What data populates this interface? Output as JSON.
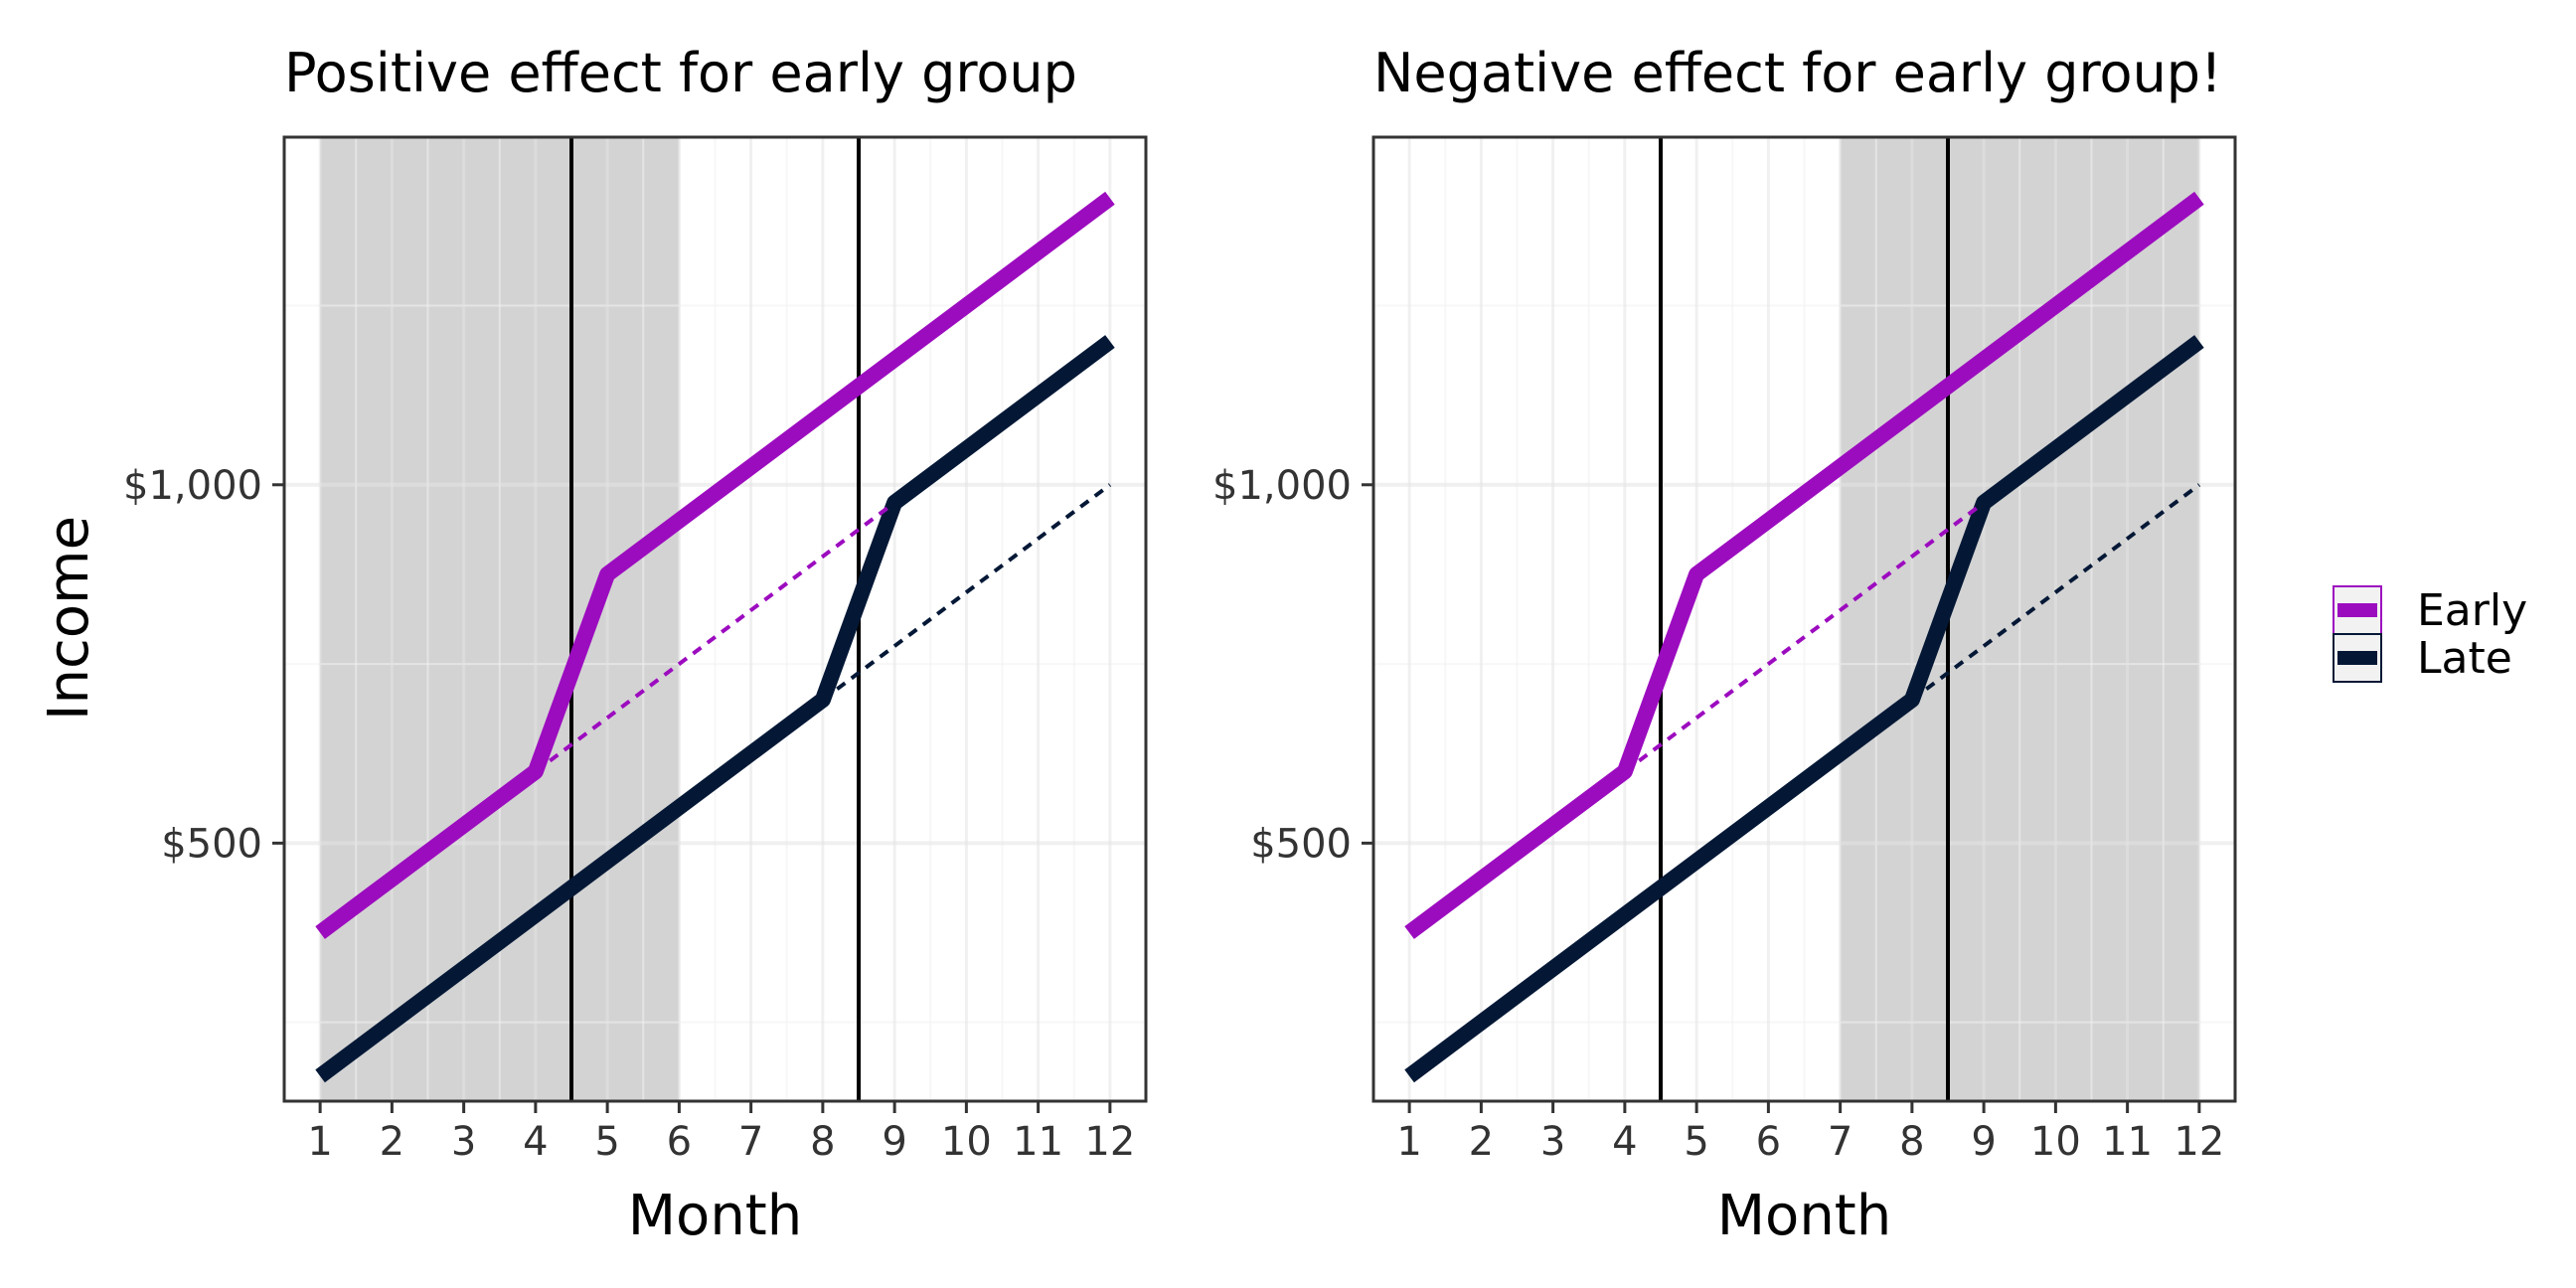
{
  "colors": {
    "early": "#9C0CBF",
    "late": "#041836",
    "shade": "#D3D3D3",
    "grid_major": "#E5E5E5",
    "grid_minor": "#F2F2F2",
    "frame": "#333333",
    "vline": "#000000"
  },
  "legend": {
    "position": "right",
    "entries": [
      {
        "name": "Early",
        "series": "early"
      },
      {
        "name": "Late",
        "series": "late"
      }
    ]
  },
  "chart_data": [
    {
      "type": "line",
      "title": "Positive effect for early group",
      "xlabel": "Month",
      "ylabel": "Income",
      "xlim": [
        0.5,
        12.5
      ],
      "ylim": [
        140,
        1485
      ],
      "x_ticks": [
        1,
        2,
        3,
        4,
        5,
        6,
        7,
        8,
        9,
        10,
        11,
        12
      ],
      "x_tick_labels": [
        "1",
        "2",
        "3",
        "4",
        "5",
        "6",
        "7",
        "8",
        "9",
        "10",
        "11",
        "12"
      ],
      "y_ticks": [
        500,
        1000
      ],
      "y_tick_labels": [
        "$500",
        "$1,000"
      ],
      "y_minor_ticks": [
        250,
        750,
        1250
      ],
      "grid": true,
      "shaded_region": [
        1,
        6
      ],
      "vlines": [
        4.5,
        8.5
      ],
      "series": [
        {
          "name": "Early",
          "key": "early",
          "style": "solid",
          "x": [
            1,
            4,
            5,
            12
          ],
          "y": [
            375,
            600,
            875,
            1400
          ]
        },
        {
          "name": "Late",
          "key": "late",
          "style": "solid",
          "x": [
            1,
            8,
            9,
            12
          ],
          "y": [
            175,
            700,
            975,
            1200
          ]
        },
        {
          "key": "early",
          "style": "dashed",
          "x": [
            4,
            8.9
          ],
          "y": [
            600,
            967.5
          ]
        },
        {
          "key": "late",
          "style": "dashed",
          "x": [
            8,
            12
          ],
          "y": [
            700,
            1000
          ]
        }
      ]
    },
    {
      "type": "line",
      "title": "Negative effect for early group!",
      "xlabel": "Month",
      "ylabel": "",
      "xlim": [
        0.5,
        12.5
      ],
      "ylim": [
        140,
        1485
      ],
      "x_ticks": [
        1,
        2,
        3,
        4,
        5,
        6,
        7,
        8,
        9,
        10,
        11,
        12
      ],
      "x_tick_labels": [
        "1",
        "2",
        "3",
        "4",
        "5",
        "6",
        "7",
        "8",
        "9",
        "10",
        "11",
        "12"
      ],
      "y_ticks": [
        500,
        1000
      ],
      "y_tick_labels": [
        "$500",
        "$1,000"
      ],
      "y_minor_ticks": [
        250,
        750,
        1250
      ],
      "grid": true,
      "shaded_region": [
        7,
        12
      ],
      "vlines": [
        4.5,
        8.5
      ],
      "series": [
        {
          "name": "Early",
          "key": "early",
          "style": "solid",
          "x": [
            1,
            4,
            5,
            12
          ],
          "y": [
            375,
            600,
            875,
            1400
          ]
        },
        {
          "name": "Late",
          "key": "late",
          "style": "solid",
          "x": [
            1,
            8,
            9,
            12
          ],
          "y": [
            175,
            700,
            975,
            1200
          ]
        },
        {
          "key": "early",
          "style": "dashed",
          "x": [
            4,
            8.9
          ],
          "y": [
            600,
            967.5
          ]
        },
        {
          "key": "late",
          "style": "dashed",
          "x": [
            8,
            12
          ],
          "y": [
            700,
            1000
          ]
        }
      ]
    }
  ]
}
